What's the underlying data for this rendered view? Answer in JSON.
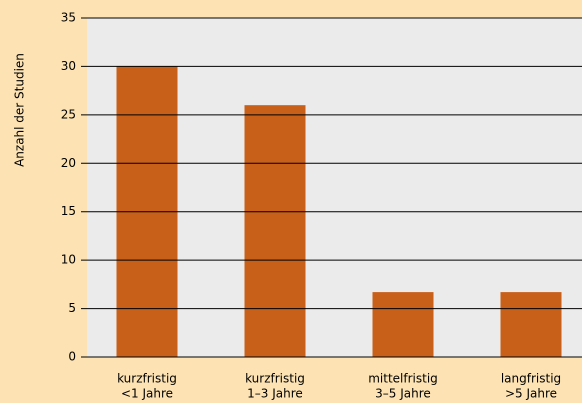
{
  "chart_data": {
    "type": "bar",
    "y_label": "Anzahl der Studien",
    "categories": [
      [
        "kurzfristig",
        "<1 Jahre"
      ],
      [
        "kurzfristig",
        "1–3 Jahre"
      ],
      [
        "mittelfristig",
        "3–5 Jahre"
      ],
      [
        "langfristig",
        ">5 Jahre"
      ]
    ],
    "values": [
      30,
      26,
      6.7,
      6.7
    ],
    "color": "#c8601a",
    "ylim": [
      0,
      35
    ],
    "yticks": [
      0,
      5,
      10,
      15,
      20,
      25,
      30,
      35
    ],
    "grid": true
  }
}
